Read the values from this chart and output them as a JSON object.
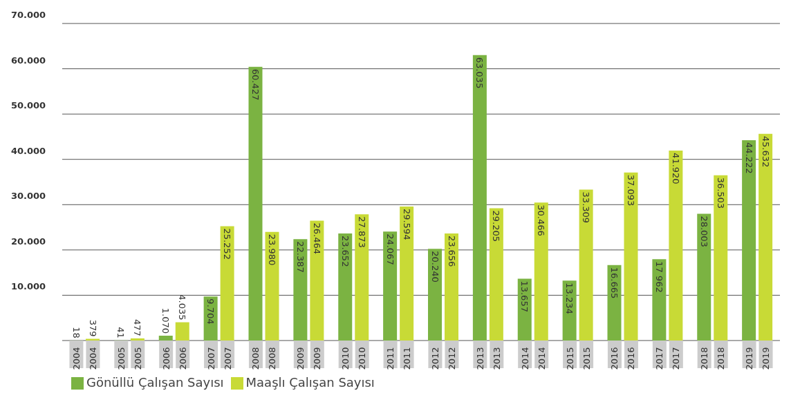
{
  "chart_data": {
    "type": "bar",
    "categories": [
      "2004",
      "2005",
      "2006",
      "2007",
      "2008",
      "2009",
      "2010",
      "2011",
      "2012",
      "2013",
      "2014",
      "2015",
      "2016",
      "2017",
      "2018",
      "2019"
    ],
    "series": [
      {
        "name": "Gönüllü Çalışan Sayısı",
        "color": "#7bb342",
        "values": [
          18,
          41,
          1070,
          9704,
          60427,
          22387,
          23652,
          24067,
          20240,
          63035,
          13657,
          13234,
          16665,
          17962,
          28003,
          44222
        ],
        "value_labels": [
          "18",
          "41",
          "1.070",
          "9.704",
          "60.427",
          "22.387",
          "23.652",
          "24.067",
          "20.240",
          "63.035",
          "13.657",
          "13.234",
          "16.665",
          "17 962",
          "28.003",
          "44.222"
        ]
      },
      {
        "name": "Maaşlı Çalışan Sayısı",
        "color": "#c8da36",
        "values": [
          379,
          477,
          4035,
          25252,
          23980,
          26464,
          27873,
          29594,
          23656,
          29205,
          30466,
          33309,
          37093,
          41920,
          36503,
          45632
        ],
        "value_labels": [
          "379",
          "477",
          "4.035",
          "25.252",
          "23.980",
          "26.464",
          "27.873",
          "29.594",
          "23.656",
          "29.205",
          "30.466",
          "33.309",
          "37.093",
          "41.920",
          "36.503",
          "45.632"
        ]
      }
    ],
    "ylim": [
      0,
      70000
    ],
    "yticks": [
      {
        "value": 10000,
        "label": "10.000"
      },
      {
        "value": 20000,
        "label": "20.000"
      },
      {
        "value": 30000,
        "label": "30.000"
      },
      {
        "value": 40000,
        "label": "40.000"
      },
      {
        "value": 50000,
        "label": "50.000"
      },
      {
        "value": 60000,
        "label": "60.000"
      },
      {
        "value": 70000,
        "label": "70.000"
      }
    ],
    "grid": "y",
    "legend": "bottom left"
  }
}
